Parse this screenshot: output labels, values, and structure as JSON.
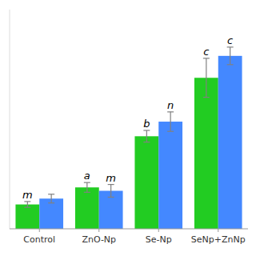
{
  "chart_data": {
    "type": "bar",
    "categories": [
      "Control",
      "ZnO-Np",
      "Se-Np",
      "SeNp+ZnNp"
    ],
    "series": [
      {
        "color": "#22cc22",
        "values": [
          0.5,
          0.85,
          1.9,
          3.1
        ],
        "errors": [
          0.06,
          0.1,
          0.12,
          0.4
        ],
        "annotations": [
          "m",
          "a",
          "b",
          "c"
        ]
      },
      {
        "color": "#4488ff",
        "values": [
          0.62,
          0.78,
          2.2,
          3.55
        ],
        "errors": [
          0.09,
          0.13,
          0.2,
          0.18
        ],
        "annotations": [
          null,
          "m",
          "n",
          "c"
        ]
      }
    ],
    "ylim": [
      0,
      4.5
    ],
    "yticks": [],
    "grid": false,
    "tick_labels": "x"
  }
}
